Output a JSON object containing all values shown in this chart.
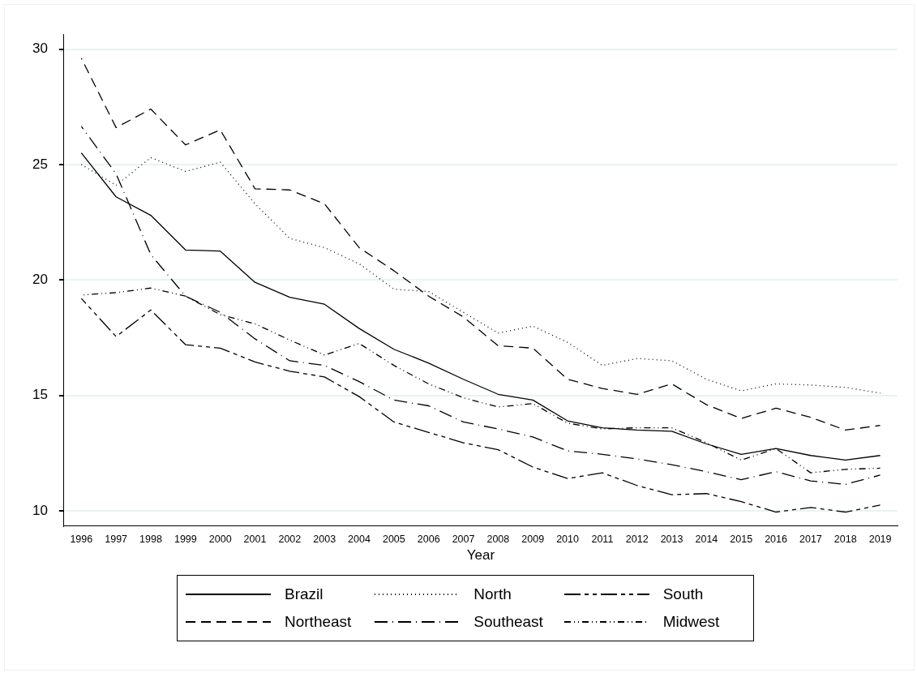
{
  "chart_data": {
    "type": "line",
    "xlabel": "Year",
    "categories": [
      "1996",
      "1997",
      "1998",
      "1999",
      "2000",
      "2001",
      "2002",
      "2003",
      "2004",
      "2005",
      "2006",
      "2007",
      "2008",
      "2009",
      "2010",
      "2011",
      "2012",
      "2013",
      "2014",
      "2015",
      "2016",
      "2017",
      "2018",
      "2019"
    ],
    "ylim": [
      9.35,
      30.65
    ],
    "yticks": [
      10,
      15,
      20,
      25,
      30
    ],
    "grid": "y",
    "legend": "bottom",
    "marker": "none",
    "series": [
      {
        "name": "Brazil",
        "color": "#000000",
        "line_style": "solid",
        "values": [
          25.5,
          23.6,
          22.8,
          21.3,
          21.25,
          19.9,
          19.25,
          18.95,
          17.9,
          17.0,
          16.4,
          15.7,
          15.05,
          14.8,
          13.9,
          13.6,
          13.5,
          13.45,
          12.9,
          12.45,
          12.7,
          12.4,
          12.2,
          12.4
        ]
      },
      {
        "name": "North",
        "color": "#000000",
        "line_style": "dotted",
        "values": [
          25.0,
          24.1,
          25.3,
          24.7,
          25.1,
          23.3,
          21.8,
          21.4,
          20.7,
          19.6,
          19.5,
          18.6,
          17.7,
          18.0,
          17.3,
          16.3,
          16.6,
          16.5,
          15.7,
          15.2,
          15.5,
          15.45,
          15.35,
          15.1
        ]
      },
      {
        "name": "South",
        "color": "#000000",
        "line_style": "longdashdot",
        "values": [
          19.2,
          17.55,
          18.7,
          17.2,
          17.05,
          16.45,
          16.05,
          15.8,
          14.95,
          13.85,
          13.4,
          12.95,
          12.65,
          11.9,
          11.4,
          11.65,
          11.1,
          10.7,
          10.75,
          10.4,
          9.95,
          10.15,
          9.95,
          10.25
        ]
      },
      {
        "name": "Northeast",
        "color": "#000000",
        "line_style": "dashed",
        "values": [
          29.6,
          26.6,
          27.4,
          25.85,
          26.5,
          23.95,
          23.9,
          23.3,
          21.4,
          20.4,
          19.3,
          18.4,
          17.15,
          17.05,
          15.7,
          15.3,
          15.05,
          15.5,
          14.6,
          14.0,
          14.45,
          14.05,
          13.5,
          13.7
        ]
      },
      {
        "name": "Southeast",
        "color": "#000000",
        "line_style": "dashdot",
        "values": [
          26.65,
          24.6,
          21.1,
          19.3,
          18.6,
          17.45,
          16.5,
          16.3,
          15.6,
          14.8,
          14.55,
          13.85,
          13.55,
          13.2,
          12.6,
          12.45,
          12.25,
          12.0,
          11.7,
          11.35,
          11.7,
          11.3,
          11.15,
          11.55
        ]
      },
      {
        "name": "Midwest",
        "color": "#000000",
        "line_style": "dashdotdot",
        "values": [
          19.35,
          19.45,
          19.65,
          19.3,
          18.5,
          18.1,
          17.4,
          16.75,
          17.25,
          16.3,
          15.5,
          14.9,
          14.5,
          14.65,
          13.8,
          13.55,
          13.6,
          13.6,
          12.95,
          12.2,
          12.7,
          11.65,
          11.8,
          11.85
        ]
      }
    ]
  }
}
